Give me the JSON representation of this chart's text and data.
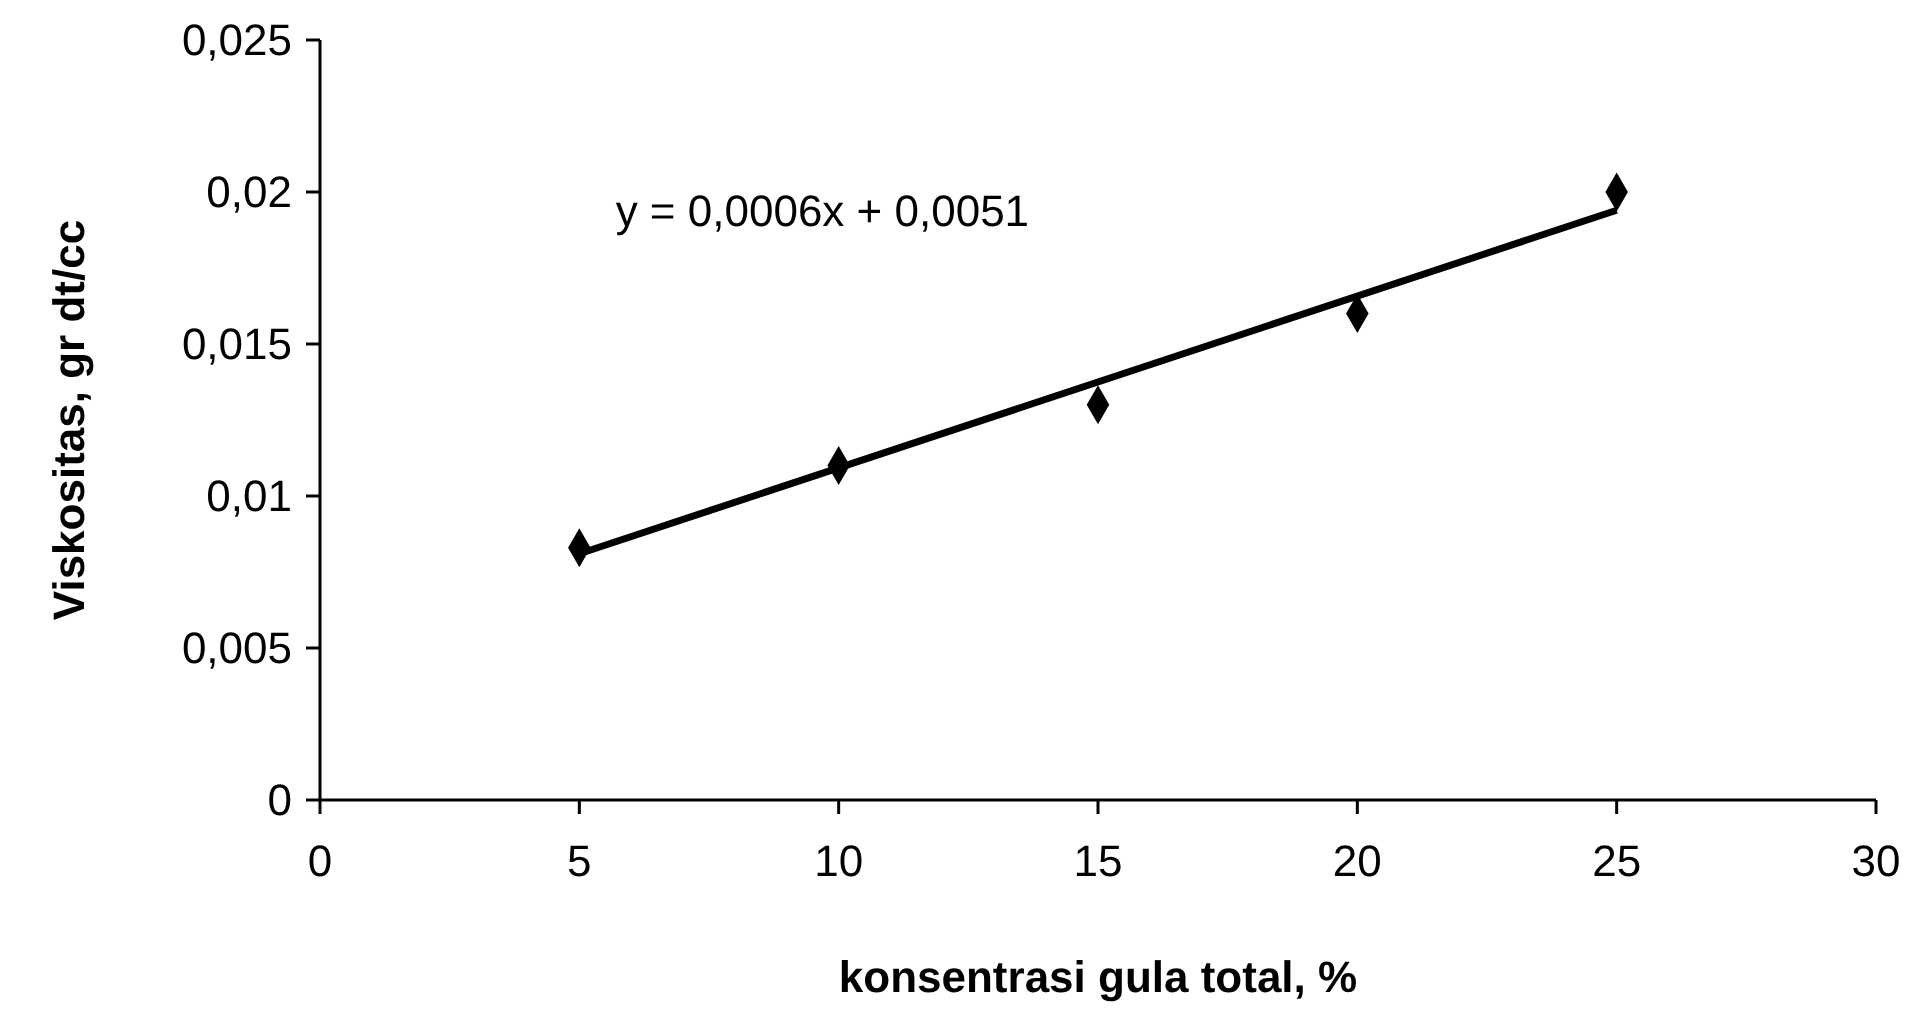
{
  "chart_data": {
    "type": "scatter",
    "xlabel": "konsentrasi gula total, %",
    "ylabel": "Viskositas, gr dt/cc",
    "xlim": [
      0,
      30
    ],
    "xticks": [
      0,
      5,
      10,
      15,
      20,
      25,
      30
    ],
    "ylim": [
      0,
      0.025
    ],
    "yticks": [
      {
        "value": 0,
        "label": "0"
      },
      {
        "value": 0.005,
        "label": "0,005"
      },
      {
        "value": 0.01,
        "label": "0,01"
      },
      {
        "value": 0.015,
        "label": "0,015"
      },
      {
        "value": 0.02,
        "label": "0,02"
      },
      {
        "value": 0.025,
        "label": "0,025"
      }
    ],
    "grid": false,
    "marker": "diamond",
    "annotations": [
      "y = 0,0006x + 0,0051"
    ],
    "series": [
      {
        "color": "#000000",
        "x": [
          5,
          10,
          15,
          20,
          25
        ],
        "values": [
          0.0083,
          0.011,
          0.013,
          0.016,
          0.02
        ]
      },
      {
        "type": "line",
        "color": "#000000",
        "x": [
          5,
          25
        ],
        "values": [
          0.0081,
          0.0194
        ],
        "line_style": "solid",
        "marker": "none"
      }
    ]
  }
}
